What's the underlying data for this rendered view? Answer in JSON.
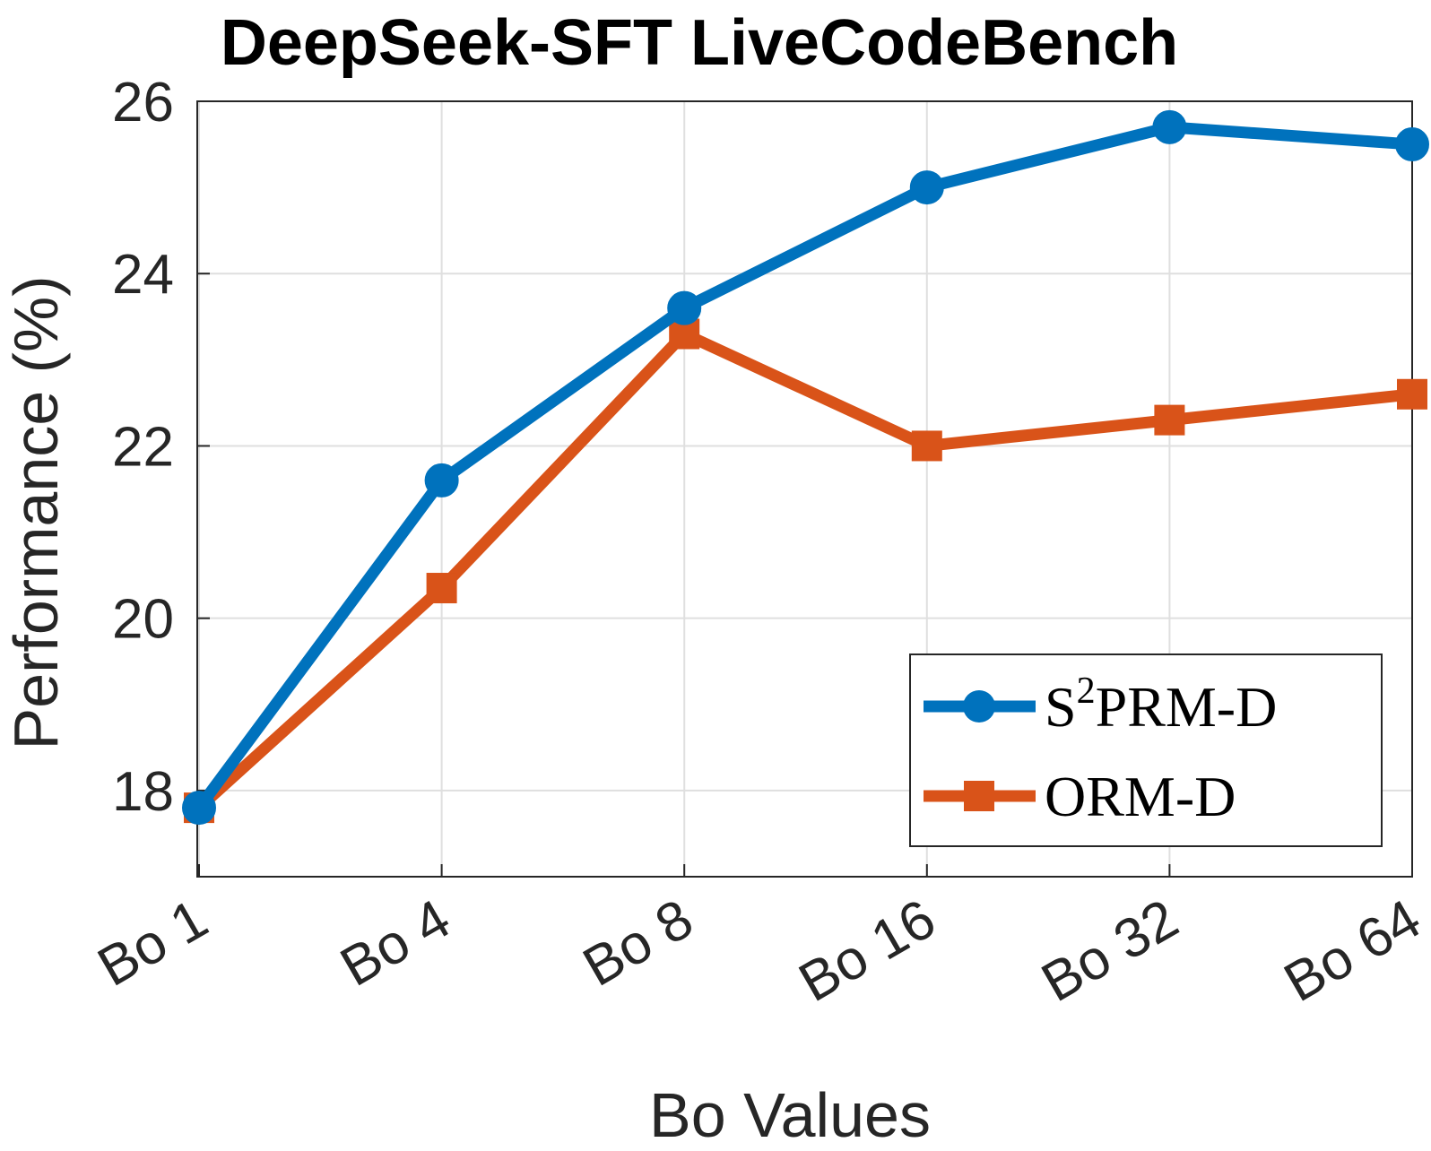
{
  "chart_data": {
    "type": "line",
    "title": "DeepSeek-SFT LiveCodeBench",
    "xlabel": "Bo Values",
    "ylabel": "Performance (%)",
    "categories": [
      "Bo 1",
      "Bo 4",
      "Bo 8",
      "Bo 16",
      "Bo 32",
      "Bo 64"
    ],
    "ylim": [
      17,
      26
    ],
    "yticks": [
      18,
      20,
      22,
      24,
      26
    ],
    "grid": true,
    "legend_position": "bottom-right",
    "series": [
      {
        "name_base": "S",
        "name_sup": "2",
        "name_rest": "PRM-D",
        "marker": "circle",
        "color": "#0072BD",
        "values": [
          17.8,
          21.6,
          23.6,
          25.0,
          25.7,
          25.5
        ]
      },
      {
        "name": "ORM-D",
        "marker": "square",
        "color": "#D95319",
        "values": [
          17.8,
          20.35,
          23.3,
          22.0,
          22.3,
          22.6
        ]
      }
    ]
  }
}
